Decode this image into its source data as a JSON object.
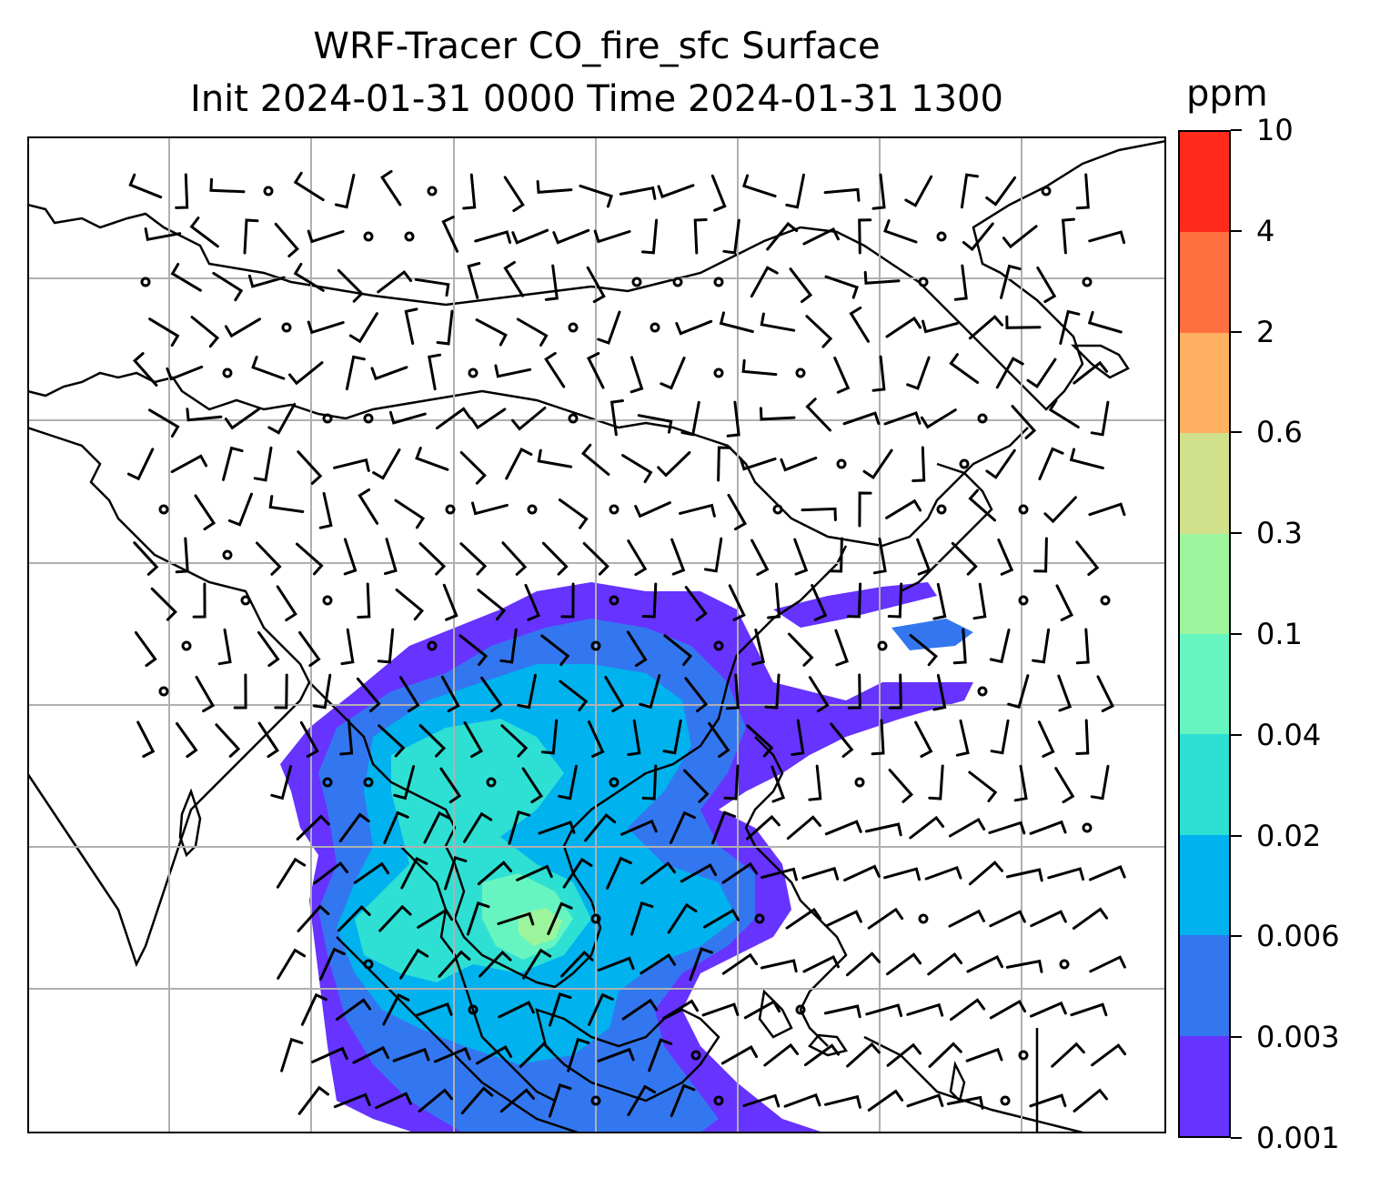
{
  "title": {
    "line1": "WRF-Tracer CO_fire_sfc Surface",
    "line2": "Init 2024-01-31 0000 Time 2024-01-31 1300"
  },
  "colorbar": {
    "unit": "ppm",
    "labels": [
      "0.001",
      "0.003",
      "0.006",
      "0.02",
      "0.04",
      "0.1",
      "0.3",
      "0.6",
      "2",
      "4",
      "10"
    ],
    "colors": [
      "#6633ff",
      "#3377f0",
      "#00b2ee",
      "#2ee0d4",
      "#66f5c0",
      "#9cf59c",
      "#d1e08a",
      "#ffb060",
      "#ff7040",
      "#ff2a1a"
    ]
  },
  "map": {
    "fill_colors": [
      "#6633ff",
      "#3377f0",
      "#00b2ee",
      "#2ee0d4",
      "#66f5c0",
      "#9cf59c",
      "#ff9060"
    ],
    "line_color": "#000000",
    "grid_color": "#b0b0b0",
    "grid_lines": "on"
  }
}
